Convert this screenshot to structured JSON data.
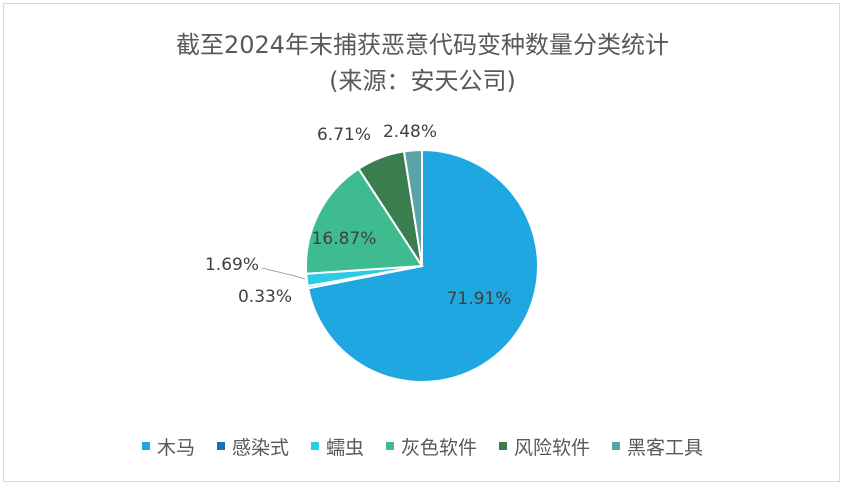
{
  "chart_data": {
    "type": "pie",
    "title": "截至2024年末捕获恶意代码变种数量分类统计",
    "subtitle": "(来源：安天公司)",
    "categories": [
      "木马",
      "感染式",
      "蠕虫",
      "灰色软件",
      "风险软件",
      "黑客工具"
    ],
    "values": [
      71.91,
      0.33,
      1.69,
      16.87,
      6.71,
      2.48
    ],
    "labels": [
      "71.91%",
      "0.33%",
      "1.69%",
      "16.87%",
      "6.71%",
      "2.48%"
    ],
    "colors": [
      "#1fa7e1",
      "#1a6fb3",
      "#2dcbe6",
      "#3fbc8f",
      "#3a7d4e",
      "#5aa3a6"
    ],
    "legend_position": "bottom"
  }
}
